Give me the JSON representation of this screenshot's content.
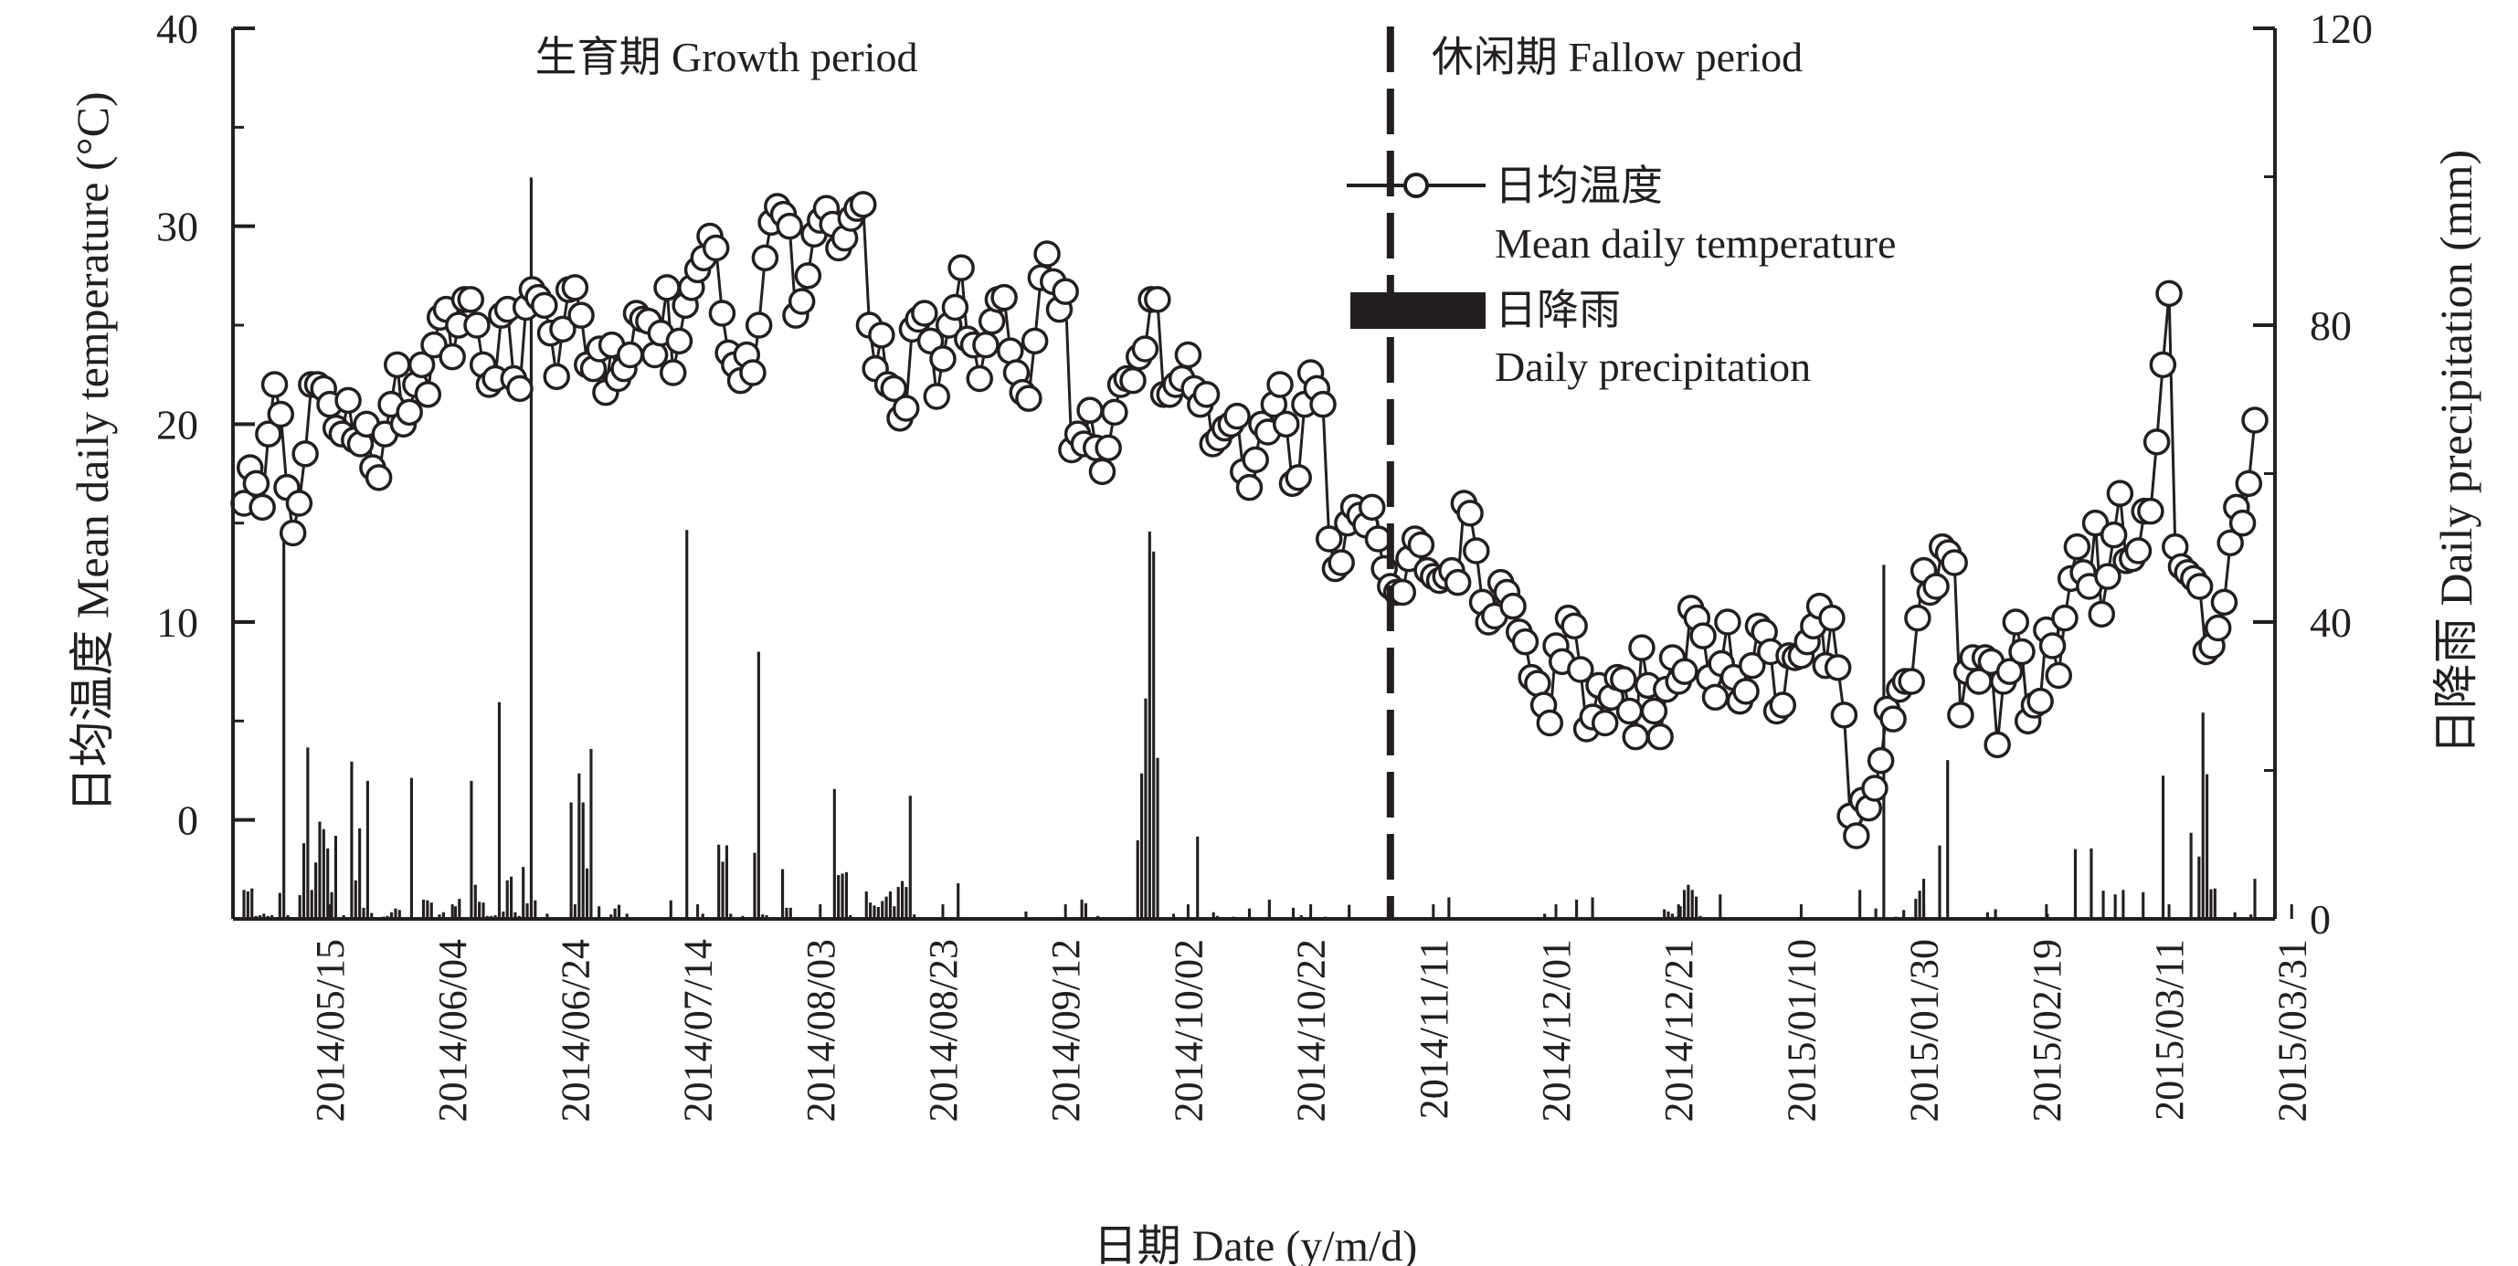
{
  "chart_data": {
    "type": "combo-line-bar",
    "x": {
      "label": "日期 Date (y/m/d)",
      "start_date": "2014-05-01",
      "end_date": "2015-04-15",
      "tick_labels": [
        "2014/05/15",
        "2014/06/04",
        "2014/06/24",
        "2014/07/14",
        "2014/08/03",
        "2014/08/23",
        "2014/09/12",
        "2014/10/02",
        "2014/10/22",
        "2014/11/11",
        "2014/12/01",
        "2014/12/21",
        "2015/01/10",
        "2015/01/30",
        "2015/02/19",
        "2015/03/11",
        "2015/03/31"
      ],
      "tick_days": [
        14,
        34,
        54,
        74,
        94,
        114,
        134,
        154,
        174,
        194,
        214,
        234,
        254,
        274,
        294,
        314,
        334
      ]
    },
    "y_left": {
      "label": "日均温度 Mean daily temperature (°C)",
      "ylim": [
        -5,
        40
      ],
      "ticks": [
        0,
        10,
        20,
        30,
        40
      ]
    },
    "y_right": {
      "label": "日降雨 Daily precipitation (mm)",
      "ylim": [
        0,
        120
      ],
      "ticks": [
        0,
        40,
        80,
        120
      ]
    },
    "periods": [
      {
        "name": "生育期 Growth period"
      },
      {
        "name": "休闲期 Fallow period"
      }
    ],
    "divider_day": 187,
    "legend": {
      "temperature_cn": "日均温度",
      "temperature_en": "Mean daily temperature",
      "precipitation_cn": "日降雨",
      "precipitation_en": "Daily precipitation"
    },
    "series": [
      {
        "name": "Mean daily temperature",
        "axis": "left",
        "marker": "open-circle",
        "values": [
          16.0,
          17.8,
          17.0,
          15.8,
          19.5,
          22.0,
          20.5,
          16.8,
          14.5,
          16.0,
          18.5,
          22.0,
          22.0,
          21.8,
          21.0,
          19.8,
          19.5,
          21.2,
          19.2,
          19.0,
          20.0,
          17.8,
          17.3,
          19.5,
          21.0,
          23.0,
          20.0,
          20.6,
          22.0,
          23.0,
          21.5,
          24.0,
          25.4,
          25.8,
          23.4,
          25.0,
          26.3,
          26.3,
          25.0,
          23.0,
          22.0,
          22.3,
          25.5,
          25.8,
          22.3,
          21.8,
          25.9,
          26.8,
          26.4,
          26.0,
          24.6,
          22.4,
          24.8,
          26.8,
          26.9,
          25.5,
          23.0,
          22.8,
          23.8,
          21.6,
          24.0,
          22.3,
          22.8,
          23.5,
          25.6,
          25.3,
          25.2,
          23.5,
          24.6,
          26.9,
          22.6,
          24.2,
          26.0,
          26.9,
          27.8,
          28.4,
          29.5,
          28.9,
          25.6,
          23.6,
          23.0,
          22.2,
          23.5,
          22.6,
          25.0,
          28.4,
          30.2,
          31.0,
          30.6,
          30.0,
          25.5,
          26.2,
          27.5,
          29.6,
          30.3,
          30.9,
          30.1,
          28.9,
          29.4,
          30.4,
          30.9,
          31.1,
          25.0,
          22.8,
          24.5,
          22.0,
          21.8,
          20.3,
          20.8,
          24.8,
          25.3,
          25.6,
          24.2,
          21.4,
          23.3,
          25.0,
          25.9,
          27.9,
          24.3,
          24.0,
          22.3,
          24.0,
          25.2,
          26.3,
          26.4,
          23.7,
          22.6,
          21.6,
          21.3,
          24.2,
          27.4,
          28.6,
          27.2,
          25.8,
          26.7,
          18.7,
          19.5,
          19.0,
          20.7,
          18.8,
          17.6,
          18.8,
          20.6,
          22.0,
          22.3,
          22.2,
          23.4,
          23.8,
          26.3,
          26.3,
          21.5,
          21.5,
          22.0,
          22.3,
          23.5,
          21.8,
          21.0,
          21.5,
          19.0,
          19.3,
          19.8,
          20.0,
          20.4,
          17.6,
          16.8,
          18.2,
          20.0,
          19.6,
          21.0,
          22.0,
          20.0,
          17.0,
          17.3,
          21.0,
          22.6,
          21.8,
          21.0,
          14.2,
          12.7,
          13.0,
          15.0,
          15.8,
          15.4,
          14.9,
          15.8,
          14.2,
          12.7,
          11.8,
          11.5,
          11.5,
          13.2,
          14.2,
          13.9,
          12.6,
          12.3,
          12.1,
          12.3,
          12.6,
          12.0,
          16.0,
          15.5,
          13.6,
          11.0,
          10.0,
          10.3,
          12.0,
          11.5,
          10.8,
          9.5,
          9.0,
          7.2,
          6.9,
          5.8,
          4.9,
          8.8,
          8.0,
          10.2,
          9.8,
          7.6,
          4.6,
          5.2,
          6.8,
          4.9,
          6.2,
          7.2,
          7.1,
          5.5,
          4.2,
          8.7,
          6.8,
          5.5,
          4.2,
          6.6,
          8.2,
          7.0,
          7.5,
          10.7,
          10.2,
          9.3,
          7.2,
          6.2,
          7.9,
          10.0,
          7.2,
          6.0,
          6.5,
          7.8,
          9.8,
          9.5,
          8.5,
          5.5,
          5.8,
          8.3,
          8.2,
          8.3,
          9.0,
          9.8,
          10.8,
          7.8,
          10.2,
          7.7,
          5.3,
          0.2,
          -0.8,
          1.0,
          0.6,
          1.6,
          3.0,
          5.6,
          5.1,
          6.6,
          7.0,
          7.0,
          10.2,
          12.6,
          11.5,
          11.8,
          13.8,
          13.5,
          13.0,
          5.3,
          7.5,
          8.2,
          7.0,
          8.2,
          8.0,
          3.8,
          7.0,
          7.5,
          10.0,
          8.5,
          5.0,
          5.8,
          6.0,
          9.6,
          8.8,
          7.3,
          10.2,
          12.2,
          13.8,
          12.5,
          11.8,
          15.0,
          10.4,
          12.3,
          14.4,
          16.5,
          13.1,
          13.2,
          13.6,
          15.6,
          15.6,
          19.1,
          23.0,
          26.6,
          13.8,
          12.8,
          12.5,
          12.2,
          11.8,
          8.5,
          8.8,
          9.7,
          11.0,
          14.0,
          15.8,
          15.0,
          17.0,
          20.2
        ]
      },
      {
        "name": "Daily precipitation",
        "axis": "right",
        "type": "bar",
        "values": [
          3.9,
          3.7,
          4.1,
          0.4,
          0.5,
          0.7,
          0.4,
          0.5,
          0,
          3.5,
          53.1,
          0.5,
          0,
          0,
          3.2,
          10.2,
          23.1,
          3.9,
          7.6,
          13.1,
          12.1,
          9.5,
          3.6,
          11.2,
          0,
          0.5,
          0,
          21.2,
          5.2,
          12.2,
          1.5,
          18.6,
          0.8,
          0,
          0,
          0.3,
          0.4,
          0.9,
          1.4,
          1.2,
          0,
          0,
          19.0,
          0.2,
          0,
          2.6,
          2.5,
          2.2,
          0,
          0.6,
          0.9,
          0.1,
          0,
          1.7,
          2.7,
          0.1,
          0.1,
          18.6,
          4.6,
          2.3,
          2.2,
          0.4,
          0.4,
          0.5,
          29.2,
          1.0,
          5.2,
          5.7,
          0.9,
          0.4,
          7.0,
          2.1,
          99.9,
          2.5,
          0,
          0,
          0.7,
          0,
          0,
          0,
          0,
          0,
          15.7,
          0,
          19.6,
          15.7,
          6.8,
          22.9,
          0,
          1.7,
          0,
          0,
          0.6,
          1.4,
          1.9,
          0,
          0.7,
          0,
          0,
          0,
          0,
          0,
          0,
          0,
          0,
          0,
          0,
          2.5,
          0,
          0,
          0,
          52.4,
          0,
          0,
          0,
          0.7,
          0,
          0,
          0.2,
          10.0,
          7.7,
          9.9,
          0.7,
          0,
          0,
          0.4,
          0,
          0.1,
          8.9,
          36.0,
          0.6,
          0.5,
          0,
          0,
          0,
          6.7,
          1.5,
          1.5,
          0,
          0,
          0,
          0,
          0.1,
          0,
          0,
          0,
          0,
          0,
          17.5,
          5.9,
          6.1,
          6.3,
          0.5,
          0,
          0,
          0,
          3.7,
          2.2,
          1.8,
          1.6,
          2.4,
          3.0,
          3.7,
          1.7,
          4.3,
          5.1,
          4.3,
          16.6,
          0.6,
          0,
          0,
          0,
          0,
          0,
          0,
          0,
          0,
          0,
          0,
          4.8,
          0,
          0,
          0,
          0,
          0,
          0,
          0.1,
          0,
          0,
          0,
          0,
          0,
          0,
          0,
          0,
          0,
          1.0,
          0,
          0,
          0,
          0,
          0,
          0,
          0,
          0,
          0,
          0,
          0,
          0,
          0,
          2.6,
          2.1,
          0,
          0,
          0.4,
          0,
          0,
          0,
          0,
          0,
          0,
          0,
          0,
          0,
          10.6,
          19.6,
          29.7,
          52.2,
          49.5,
          21.7,
          0,
          0,
          0,
          0.7,
          0,
          0,
          0,
          0,
          0,
          11.1,
          0,
          0,
          0,
          0.9,
          0.4,
          0.2,
          0,
          0,
          0.3,
          0,
          0,
          0,
          1.4,
          0,
          0,
          0,
          0,
          2.6,
          0,
          0,
          0,
          0,
          0,
          1.5,
          0,
          0.5,
          0,
          0,
          0,
          0,
          0,
          0.3,
          0,
          0,
          0.1,
          0,
          0,
          1.9,
          0,
          0,
          0,
          0,
          0,
          0,
          0,
          0,
          0,
          0,
          0,
          0,
          0,
          0,
          0,
          0,
          0,
          0,
          0,
          0,
          0,
          0,
          0,
          0,
          2.9,
          0,
          0,
          0,
          0,
          0,
          0,
          0,
          0,
          0,
          0,
          0,
          0,
          0,
          0,
          0,
          0,
          0,
          0,
          0,
          0,
          0.1,
          0,
          0,
          0.7,
          0,
          0,
          0,
          0,
          0,
          0,
          0,
          2.6,
          0,
          0,
          0,
          2.9,
          0,
          0,
          0,
          0,
          0,
          0,
          0,
          0,
          0,
          0,
          0,
          0,
          0,
          0,
          0,
          0,
          0.2,
          1.3,
          1.0,
          0.7,
          0.3,
          1.7,
          3.9,
          4.6,
          3.9,
          3.0,
          0.4,
          0,
          0,
          0,
          0,
          3.3,
          0,
          0,
          0,
          0,
          0,
          0,
          0,
          0,
          0,
          0,
          0,
          0,
          0,
          0,
          0,
          0,
          0,
          0,
          0,
          0,
          0,
          0,
          0.2,
          0,
          0,
          0,
          0,
          0,
          0,
          0,
          0,
          0,
          0,
          0,
          3.9,
          0,
          0.1,
          0,
          1.4,
          0,
          47.7,
          0,
          0,
          0.3,
          0,
          1.2,
          0,
          0,
          2.7,
          3.8,
          5.4,
          0,
          0,
          0,
          9.9,
          0,
          21.4,
          0,
          0,
          0.1,
          0,
          0,
          0,
          0,
          0,
          0,
          0.9,
          0.1,
          1.3,
          0,
          0,
          0,
          0,
          0,
          0,
          0,
          0,
          0,
          0,
          0,
          0,
          0.7,
          0,
          0,
          0.1,
          0,
          0,
          0,
          9.4,
          0,
          0,
          0,
          9.5,
          0,
          0,
          3.8,
          0,
          0,
          3.3,
          0,
          3.9,
          0,
          0,
          0,
          0,
          3.6,
          0,
          0,
          0,
          0,
          19.3,
          0,
          0,
          0,
          0,
          0,
          0,
          11.6,
          0,
          8.4,
          27.8,
          19.5,
          4.0,
          4.1,
          0.2,
          0,
          0,
          0,
          0.9,
          0,
          0,
          0,
          0.6,
          5.4
        ]
      }
    ]
  }
}
